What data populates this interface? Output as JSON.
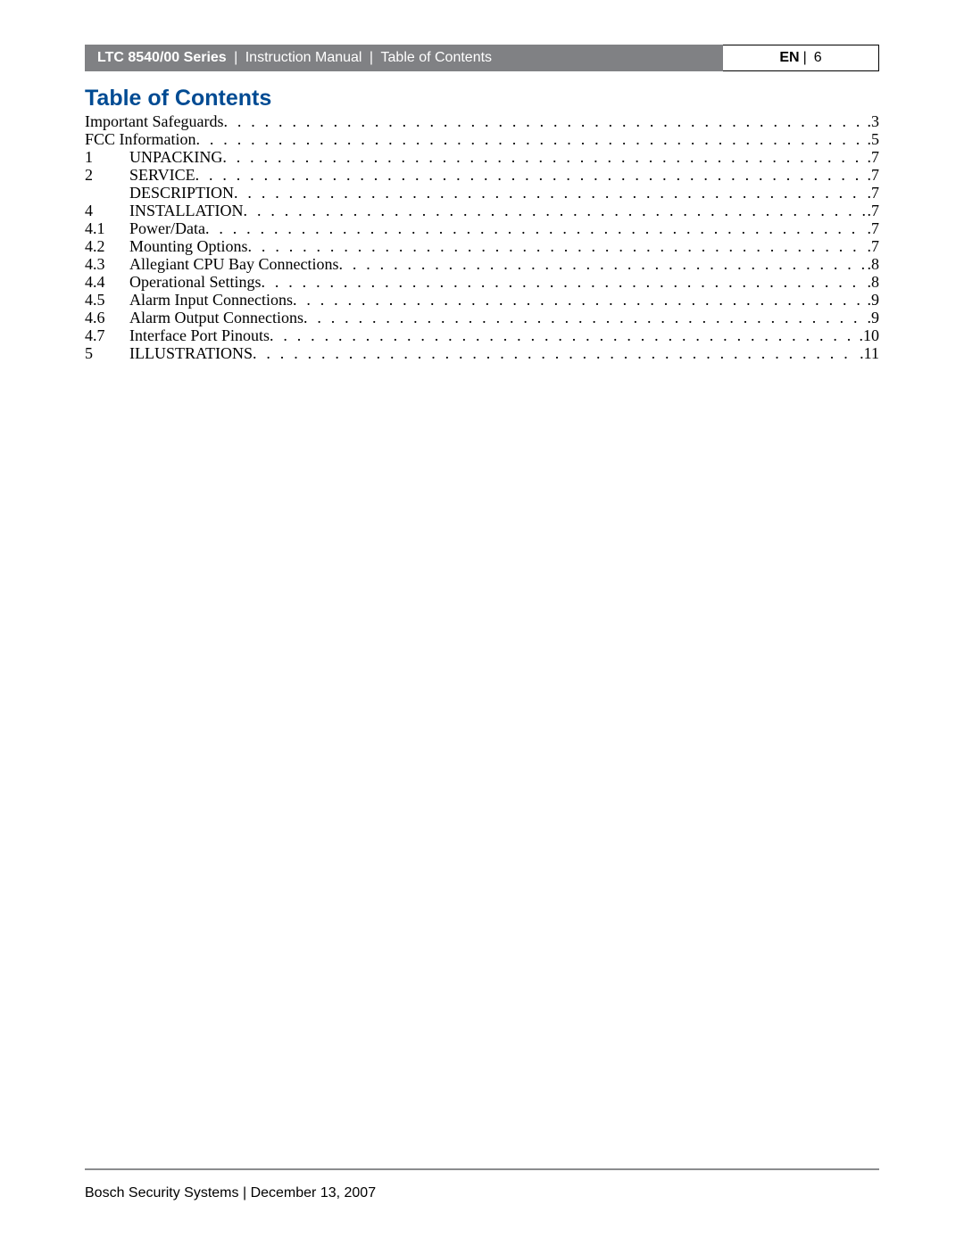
{
  "header": {
    "series": "LTC 8540/00 Series",
    "manual": "Instruction Manual",
    "section": "Table of Contents",
    "lang": "EN",
    "page": "6"
  },
  "toc": {
    "title": "Table of Contents",
    "items": [
      {
        "num": "",
        "label": "Important Safeguards",
        "page": "3"
      },
      {
        "num": "",
        "label": "FCC Information",
        "page": "5"
      },
      {
        "num": "1",
        "label": "UNPACKING",
        "page": "7"
      },
      {
        "num": "2",
        "label": "SERVICE",
        "page": "7"
      },
      {
        "num": "",
        "label": "DESCRIPTION",
        "page": "7"
      },
      {
        "num": "4",
        "label": "INSTALLATION",
        "page": "7"
      },
      {
        "num": "4.1",
        "label": "Power/Data",
        "page": "7"
      },
      {
        "num": "4.2",
        "label": "Mounting Options",
        "page": "7"
      },
      {
        "num": "4.3",
        "label": "Allegiant CPU Bay Connections",
        "page": "8"
      },
      {
        "num": "4.4",
        "label": "Operational Settings",
        "page": "8"
      },
      {
        "num": "4.5",
        "label": "Alarm Input Connections",
        "page": "9"
      },
      {
        "num": "4.6",
        "label": "Alarm Output Connections",
        "page": "9"
      },
      {
        "num": "4.7",
        "label": "Interface Port Pinouts",
        "page": "10"
      },
      {
        "num": "5",
        "label": "ILLUSTRATIONS",
        "page": "11"
      }
    ]
  },
  "footer": {
    "company": "Bosch Security Systems",
    "date": "December 13, 2007"
  },
  "colors": {
    "header_bg": "#808184",
    "header_text": "#ffffff",
    "title_color": "#004b93",
    "rule_color": "#8a8c8e",
    "text_color": "#000000",
    "page_bg": "#ffffff"
  }
}
